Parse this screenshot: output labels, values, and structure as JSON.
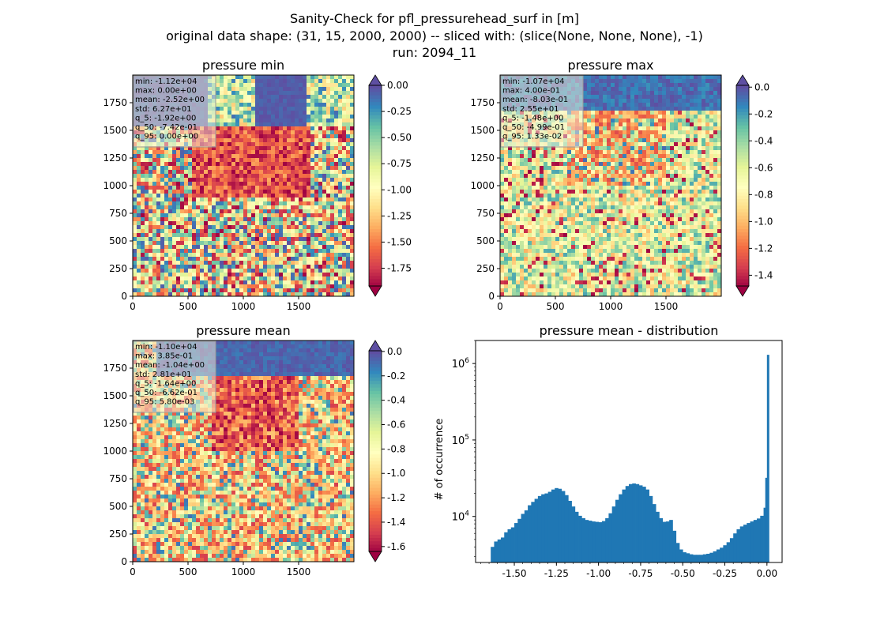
{
  "figure": {
    "title_lines": [
      "Sanity-Check for pfl_pressurehead_surf in [m]",
      "original data shape: (31, 15, 2000, 2000) -- sliced with: (slice(None, None, None), -1)",
      "run: 2094_11"
    ]
  },
  "colormap": {
    "name": "Spectral",
    "stops": [
      "#9e0142",
      "#d53e4f",
      "#f46d43",
      "#fdae61",
      "#fee08b",
      "#ffffbf",
      "#e6f598",
      "#abdda4",
      "#66c2a5",
      "#3288bd",
      "#5e4fa2"
    ]
  },
  "chart_data": [
    {
      "type": "heatmap",
      "title": "pressure min",
      "xlim": [
        0,
        2000
      ],
      "ylim": [
        0,
        2000
      ],
      "xticks": [
        0,
        500,
        1000,
        1500
      ],
      "yticks": [
        0,
        250,
        500,
        750,
        1000,
        1250,
        1500,
        1750
      ],
      "colorbar": {
        "vmin": -1.92,
        "vmax": 0.0,
        "ticks": [
          "0.00",
          "-0.25",
          "-0.50",
          "-0.75",
          "-1.00",
          "-1.25",
          "-1.50",
          "-1.75"
        ],
        "extend": "both"
      },
      "stats": [
        "min: -1.12e+04",
        "max: 0.00e+00",
        "mean: -2.52e+00",
        "std: 6.27e+01",
        "q_5: -1.92e+00",
        "q_50: -7.42e-01",
        "q_95: 0.00e+00"
      ]
    },
    {
      "type": "heatmap",
      "title": "pressure max",
      "xlim": [
        0,
        2000
      ],
      "ylim": [
        0,
        2000
      ],
      "xticks": [
        0,
        500,
        1000,
        1500
      ],
      "yticks": [
        0,
        250,
        500,
        750,
        1000,
        1250,
        1500,
        1750
      ],
      "colorbar": {
        "vmin": -1.48,
        "vmax": 0.0133,
        "ticks": [
          "0.0",
          "-0.2",
          "-0.4",
          "-0.6",
          "-0.8",
          "-1.0",
          "-1.2",
          "-1.4"
        ],
        "extend": "both"
      },
      "stats": [
        "min: -1.07e+04",
        "max: 4.00e-01",
        "mean: -8.03e-01",
        "std: 2.55e+01",
        "q_5: -1.48e+00",
        "q_50: -4.99e-01",
        "q_95: 1.33e-02"
      ]
    },
    {
      "type": "heatmap",
      "title": "pressure mean",
      "xlim": [
        0,
        2000
      ],
      "ylim": [
        0,
        2000
      ],
      "xticks": [
        0,
        500,
        1000,
        1500
      ],
      "yticks": [
        0,
        250,
        500,
        750,
        1000,
        1250,
        1500,
        1750
      ],
      "colorbar": {
        "vmin": -1.64,
        "vmax": 0.0058,
        "ticks": [
          "0.0",
          "-0.2",
          "-0.4",
          "-0.6",
          "-0.8",
          "-1.0",
          "-1.2",
          "-1.4",
          "-1.6"
        ],
        "extend": "both"
      },
      "stats": [
        "min: -1.10e+04",
        "max: 3.85e-01",
        "mean: -1.04e+00",
        "std: 2.81e+01",
        "q_5: -1.64e+00",
        "q_50: -6.62e-01",
        "q_95: 5.80e-03"
      ]
    },
    {
      "type": "bar",
      "title": "pressure mean - distribution",
      "xlabel": "",
      "ylabel": "# of occurrence",
      "yscale": "log",
      "xlim": [
        -1.73,
        0.09
      ],
      "ylim": [
        2500,
        2000000
      ],
      "xticks": [
        "-1.50",
        "-1.25",
        "-1.00",
        "-0.75",
        "-0.50",
        "-0.25",
        "0.00"
      ],
      "yticks": [
        "10^4",
        "10^5",
        "10^6"
      ],
      "bar_color": "#1f77b4",
      "bins": [
        [
          -1.64,
          4000
        ],
        [
          -1.62,
          4700
        ],
        [
          -1.6,
          5000
        ],
        [
          -1.58,
          5300
        ],
        [
          -1.56,
          6200
        ],
        [
          -1.54,
          6800
        ],
        [
          -1.52,
          7200
        ],
        [
          -1.5,
          8200
        ],
        [
          -1.48,
          9300
        ],
        [
          -1.46,
          10800
        ],
        [
          -1.44,
          12000
        ],
        [
          -1.42,
          14000
        ],
        [
          -1.4,
          15500
        ],
        [
          -1.38,
          17000
        ],
        [
          -1.36,
          18500
        ],
        [
          -1.34,
          19500
        ],
        [
          -1.32,
          20000
        ],
        [
          -1.3,
          21000
        ],
        [
          -1.28,
          22500
        ],
        [
          -1.26,
          23500
        ],
        [
          -1.24,
          23000
        ],
        [
          -1.22,
          21500
        ],
        [
          -1.2,
          19000
        ],
        [
          -1.18,
          16000
        ],
        [
          -1.16,
          13500
        ],
        [
          -1.14,
          11500
        ],
        [
          -1.12,
          10200
        ],
        [
          -1.1,
          9500
        ],
        [
          -1.08,
          9000
        ],
        [
          -1.06,
          8800
        ],
        [
          -1.04,
          8600
        ],
        [
          -1.02,
          8500
        ],
        [
          -1.0,
          8400
        ],
        [
          -0.98,
          8700
        ],
        [
          -0.96,
          9500
        ],
        [
          -0.94,
          11000
        ],
        [
          -0.92,
          13500
        ],
        [
          -0.9,
          16500
        ],
        [
          -0.88,
          19500
        ],
        [
          -0.86,
          22500
        ],
        [
          -0.84,
          25000
        ],
        [
          -0.82,
          26500
        ],
        [
          -0.8,
          27000
        ],
        [
          -0.78,
          26500
        ],
        [
          -0.76,
          25500
        ],
        [
          -0.74,
          24500
        ],
        [
          -0.72,
          22500
        ],
        [
          -0.7,
          18500
        ],
        [
          -0.68,
          14500
        ],
        [
          -0.66,
          11500
        ],
        [
          -0.64,
          9500
        ],
        [
          -0.62,
          8500
        ],
        [
          -0.6,
          8600
        ],
        [
          -0.58,
          9000
        ],
        [
          -0.56,
          6500
        ],
        [
          -0.54,
          4500
        ],
        [
          -0.52,
          3700
        ],
        [
          -0.5,
          3400
        ],
        [
          -0.48,
          3300
        ],
        [
          -0.46,
          3200
        ],
        [
          -0.44,
          3150
        ],
        [
          -0.42,
          3150
        ],
        [
          -0.4,
          3150
        ],
        [
          -0.38,
          3200
        ],
        [
          -0.36,
          3250
        ],
        [
          -0.34,
          3350
        ],
        [
          -0.32,
          3500
        ],
        [
          -0.3,
          3700
        ],
        [
          -0.28,
          3900
        ],
        [
          -0.26,
          4200
        ],
        [
          -0.24,
          4600
        ],
        [
          -0.22,
          5200
        ],
        [
          -0.2,
          6000
        ],
        [
          -0.18,
          6800
        ],
        [
          -0.16,
          7400
        ],
        [
          -0.14,
          7800
        ],
        [
          -0.12,
          8200
        ],
        [
          -0.1,
          8600
        ],
        [
          -0.08,
          9000
        ],
        [
          -0.06,
          9400
        ],
        [
          -0.04,
          10200
        ],
        [
          -0.02,
          13000
        ],
        [
          -0.01,
          32000
        ],
        [
          0.0,
          1300000
        ]
      ]
    }
  ]
}
